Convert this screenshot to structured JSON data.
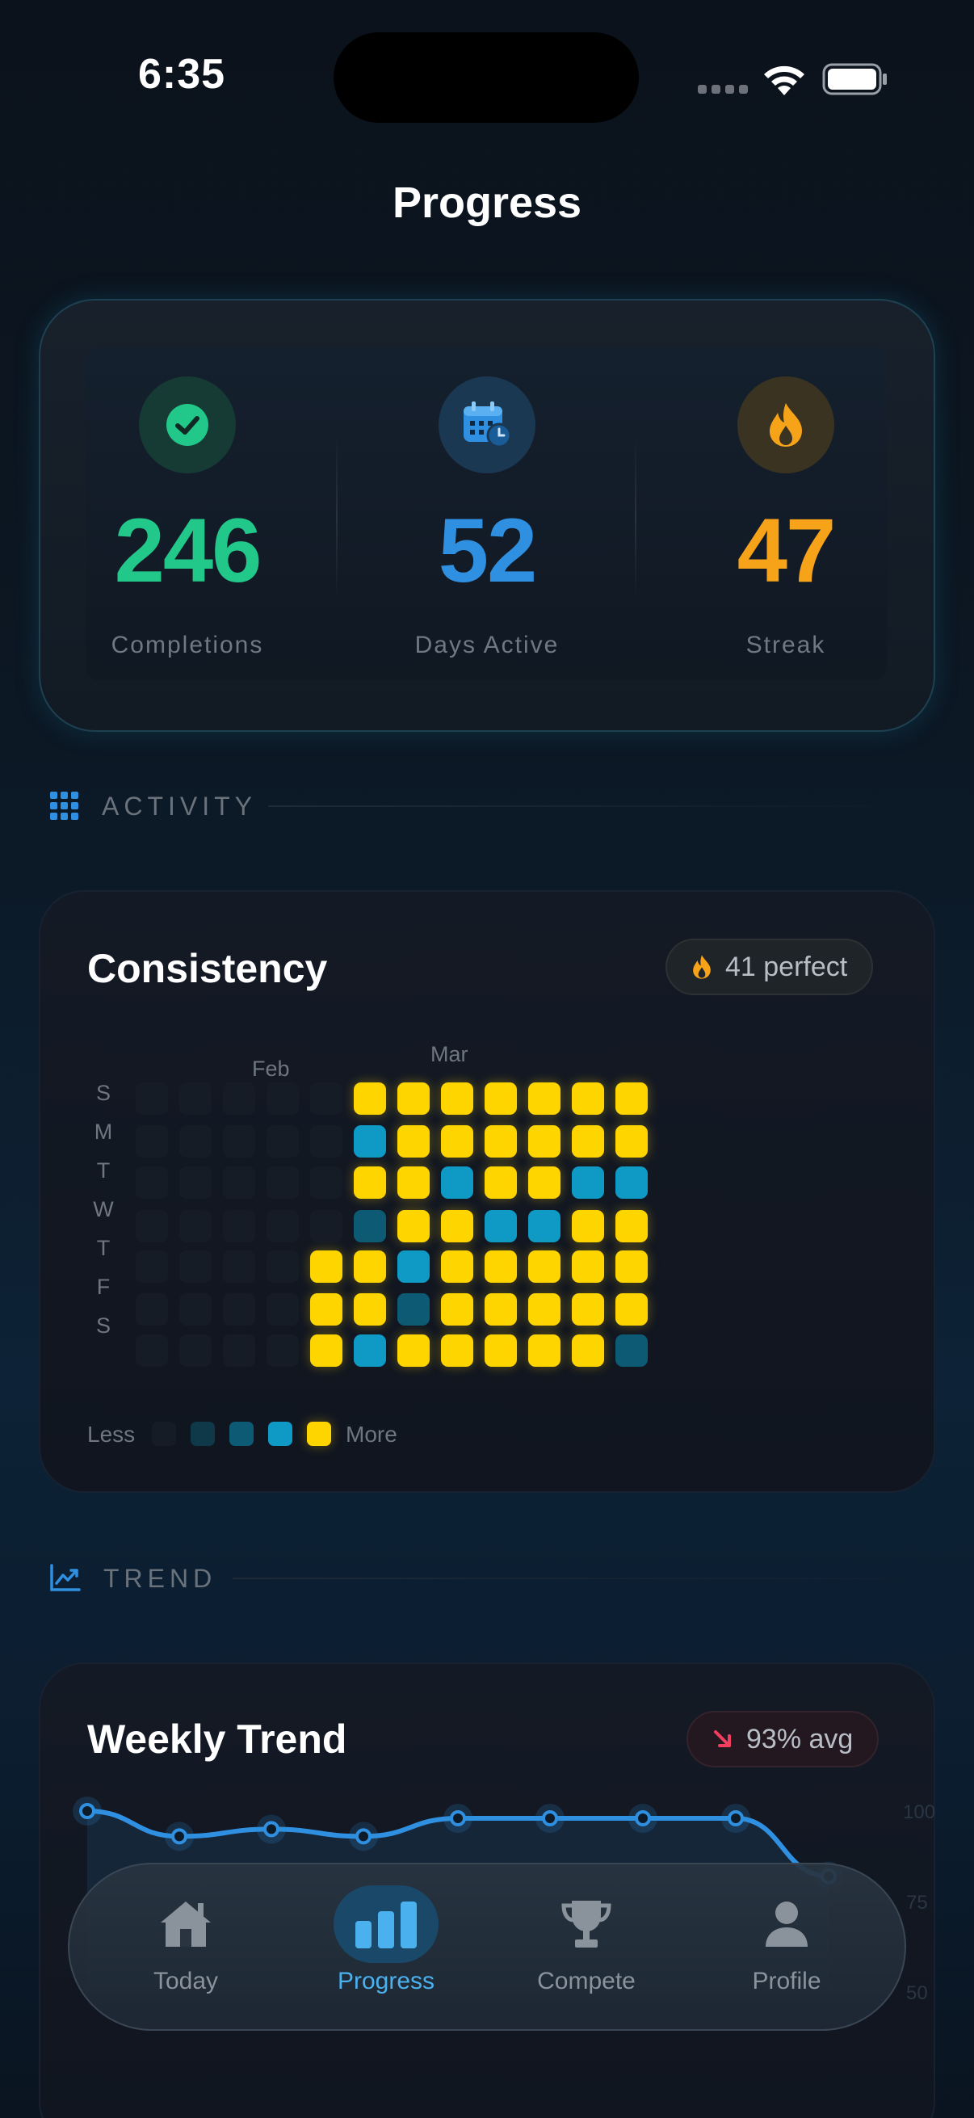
{
  "status_bar": {
    "time": "6:35"
  },
  "page": {
    "title": "Progress"
  },
  "stats": [
    {
      "value": "246",
      "label": "Completions",
      "icon": "check-circle-icon",
      "color": "#22c88a"
    },
    {
      "value": "52",
      "label": "Days Active",
      "icon": "calendar-clock-icon",
      "color": "#2f8fe0"
    },
    {
      "value": "47",
      "label": "Streak",
      "icon": "flame-icon",
      "color": "#f6a31a"
    }
  ],
  "activity_section": {
    "label": "ACTIVITY",
    "icon": "grid-icon"
  },
  "consistency": {
    "title": "Consistency",
    "badge": "41 perfect",
    "badge_icon": "flame-icon",
    "months": [
      "Feb",
      "Mar"
    ],
    "day_labels": [
      "S",
      "M",
      "T",
      "W",
      "T",
      "F",
      "S"
    ],
    "legend": {
      "less": "Less",
      "more": "More"
    },
    "weeks": [
      [
        0,
        0,
        0,
        0,
        0,
        0,
        0
      ],
      [
        0,
        0,
        0,
        0,
        0,
        0,
        0
      ],
      [
        0,
        0,
        0,
        0,
        0,
        0,
        0
      ],
      [
        0,
        0,
        0,
        0,
        0,
        0,
        0
      ],
      [
        0,
        0,
        0,
        0,
        4,
        4,
        4
      ],
      [
        4,
        3,
        4,
        2,
        4,
        4,
        3
      ],
      [
        4,
        4,
        4,
        4,
        3,
        2,
        4
      ],
      [
        4,
        4,
        3,
        4,
        4,
        4,
        4
      ],
      [
        4,
        4,
        4,
        3,
        4,
        4,
        4
      ],
      [
        4,
        4,
        4,
        3,
        4,
        4,
        4
      ],
      [
        4,
        4,
        3,
        4,
        4,
        4,
        4
      ],
      [
        4,
        4,
        3,
        4,
        4,
        4,
        2
      ]
    ]
  },
  "trend_section": {
    "label": "TREND",
    "icon": "trend-chart-icon"
  },
  "weekly_trend": {
    "title": "Weekly Trend",
    "badge": "93% avg",
    "badge_icon": "arrow-down-right-icon",
    "y_ticks": [
      "100",
      "75",
      "50"
    ]
  },
  "chart_data": {
    "type": "line",
    "title": "Weekly Trend",
    "y_ticks": [
      100,
      75,
      50
    ],
    "ylim": [
      50,
      100
    ],
    "values": [
      100,
      93,
      95,
      93,
      98,
      98,
      98,
      98,
      82
    ]
  },
  "tabs": [
    {
      "label": "Today",
      "icon": "house-icon",
      "active": false
    },
    {
      "label": "Progress",
      "icon": "bar-chart-icon",
      "active": true
    },
    {
      "label": "Compete",
      "icon": "trophy-icon",
      "active": false
    },
    {
      "label": "Profile",
      "icon": "person-icon",
      "active": false
    }
  ]
}
